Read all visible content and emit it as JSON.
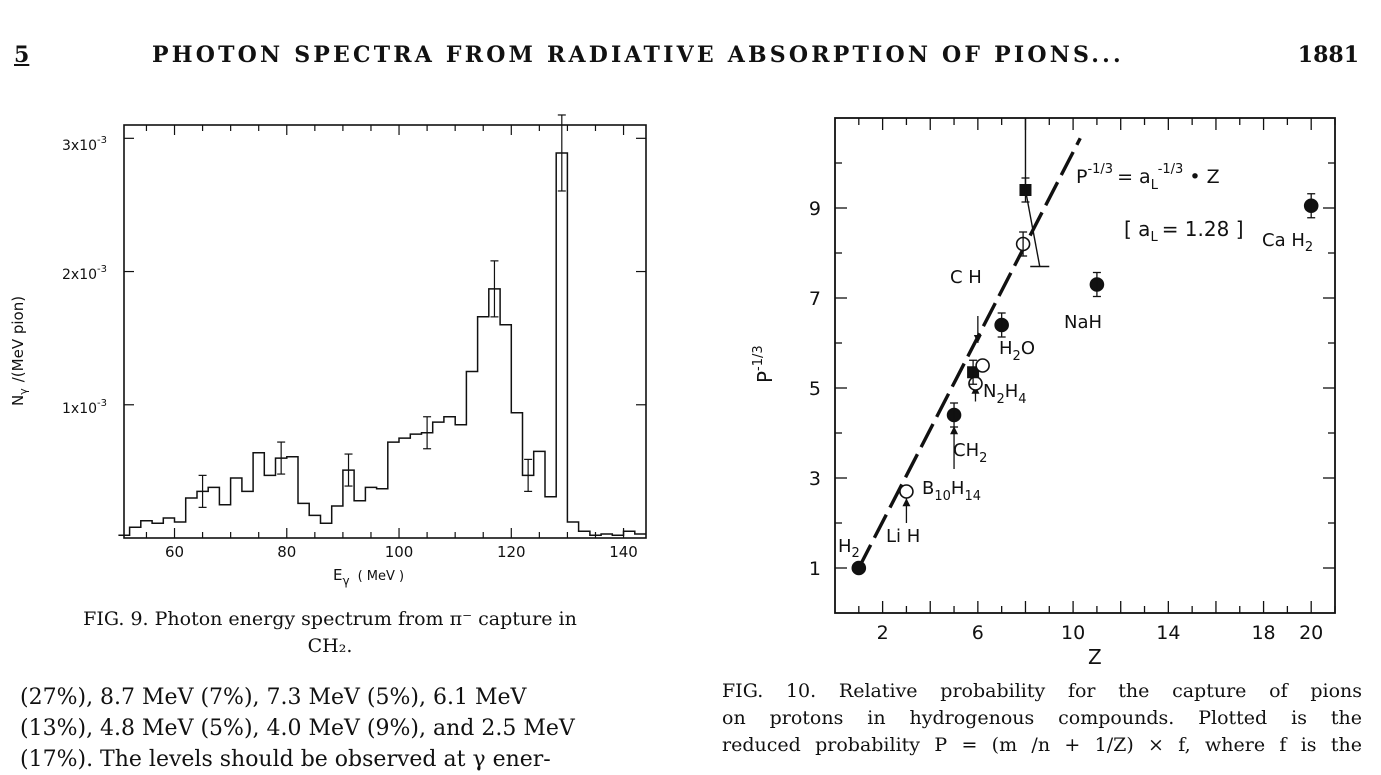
{
  "header": {
    "page_number": "5",
    "title": "PHOTON SPECTRA FROM RADIATIVE ABSORPTION OF PIONS...",
    "page": "1881"
  },
  "fig9": {
    "caption_line1": "FIG. 9.  Photon energy spectrum from π⁻ capture in",
    "caption_line2": "CH₂.",
    "xlabel": "E",
    "xlabel_sub": "γ",
    "xlabel_unit": "( MeV )",
    "ylabel": "N",
    "ylabel_sub": "γ",
    "ylabel_unit": "/(MeV pion)",
    "ytick_1": "1x10",
    "ytick_2": "2x10",
    "ytick_3": "3x10",
    "ytick_exp": "-3"
  },
  "fig10": {
    "caption": [
      "FIG. 10.  Relative probability for the capture of pions",
      "on protons in hydrogenous compounds.  Plotted is the",
      "reduced probability P = (m /n + 1/Z) × f,  where f is the"
    ],
    "xlabel": "Z",
    "ylabel": "P",
    "ylabel_exp": "-1/3",
    "formula_left": "P",
    "formula_exp1": "-1/3",
    "formula_mid": "= a",
    "formula_sub": "L",
    "formula_exp2": "-1/3",
    "formula_right": "• Z",
    "param": "[ a   = 1.28 ]",
    "param_a": "a",
    "param_sub": "L",
    "param_val": "= 1.28",
    "labels": {
      "h2": "H",
      "h2_sub": "2",
      "lih": "Li H",
      "b10h14": "B",
      "b_sub1": "10",
      "b_h": "H",
      "b_sub2": "14",
      "ch2": "CH",
      "ch2_sub": "2",
      "n2h4": "N",
      "n_sub": "2",
      "n_h": "H",
      "n_sub2": "4",
      "h2o": "H",
      "h2o_sub": "2",
      "h2o_o": "O",
      "ch": "C H",
      "nah": "NaH",
      "cah2": "Ca H",
      "cah2_sub": "2"
    }
  },
  "body_text": [
    "(27%),  8.7 MeV (7%),  7.3 MeV (5%),  6.1 MeV",
    "(13%),  4.8 MeV (5%),  4.0 MeV (9%),  and 2.5 MeV",
    "(17%).  The levels should be observed at γ ener-"
  ],
  "chart_data": [
    {
      "type": "line",
      "xlabel": "E γ ( MeV )",
      "ylabel": "N γ /(MeV pion)",
      "xlim": [
        51,
        144
      ],
      "ylim": [
        0,
        0.0031
      ],
      "x_ticks": [
        60,
        80,
        100,
        120,
        140
      ],
      "y_ticks": [
        0.001,
        0.002,
        0.003
      ],
      "series": [
        {
          "x": [
            51,
            53,
            55,
            57,
            59,
            61,
            63,
            65,
            67,
            69,
            71,
            73,
            75,
            77,
            79,
            81,
            83,
            85,
            87,
            89,
            91,
            93,
            95,
            97,
            99,
            101,
            103,
            105,
            107,
            109,
            111,
            113,
            115,
            117,
            119,
            121,
            123,
            125,
            127,
            129,
            131,
            133,
            135,
            137,
            139,
            141,
            143
          ],
          "y": [
            2e-05,
            8e-05,
            0.00013,
            0.00011,
            0.00015,
            0.00012,
            0.0003,
            0.00035,
            0.00038,
            0.00025,
            0.00045,
            0.00035,
            0.00064,
            0.00047,
            0.0006,
            0.00061,
            0.00026,
            0.00017,
            0.00011,
            0.00024,
            0.00051,
            0.00028,
            0.00038,
            0.00037,
            0.00072,
            0.00075,
            0.00078,
            0.00079,
            0.00087,
            0.00091,
            0.00085,
            0.00125,
            0.00166,
            0.00187,
            0.0016,
            0.00094,
            0.00047,
            0.00065,
            0.00031,
            0.00289,
            0.00012,
            5e-05,
            2e-05,
            3e-05,
            2e-05,
            5e-05,
            3e-05
          ]
        }
      ]
    },
    {
      "type": "scatter",
      "xlabel": "Z",
      "ylabel": "P^-1/3",
      "xlim": [
        0,
        21
      ],
      "ylim": [
        0,
        11
      ],
      "x_ticks": [
        2,
        6,
        10,
        14,
        18,
        20
      ],
      "y_ticks": [
        1,
        3,
        5,
        7,
        9
      ],
      "fit_line": {
        "label": "P^-1/3 = aL^-1/3 • Z",
        "aL": 1.28
      },
      "series": [
        {
          "name": "points",
          "points": [
            {
              "label": "H2",
              "x": 1,
              "y": 1.0,
              "marker": "filled-circle"
            },
            {
              "label": "LiH",
              "x": 3,
              "y": 2.7,
              "marker": "open-circle"
            },
            {
              "label": "B10H14",
              "x": 5,
              "y": 4.4,
              "marker": "filled-circle"
            },
            {
              "label": "CH2",
              "x": 5.9,
              "y": 5.1,
              "marker": "open-circle"
            },
            {
              "label": "",
              "x": 5.8,
              "y": 5.35,
              "marker": "filled-square"
            },
            {
              "label": "N2H4",
              "x": 6.2,
              "y": 5.5,
              "marker": "open-circle"
            },
            {
              "label": "H2O",
              "x": 7,
              "y": 6.4,
              "marker": "filled-circle"
            },
            {
              "label": "",
              "x": 7.9,
              "y": 8.2,
              "marker": "open-circle"
            },
            {
              "label": "",
              "x": 8,
              "y": 9.4,
              "marker": "filled-square"
            },
            {
              "label": "NaH",
              "x": 11,
              "y": 7.3,
              "marker": "filled-circle"
            },
            {
              "label": "CaH2",
              "x": 20,
              "y": 9.05,
              "marker": "filled-circle"
            }
          ]
        }
      ]
    }
  ]
}
